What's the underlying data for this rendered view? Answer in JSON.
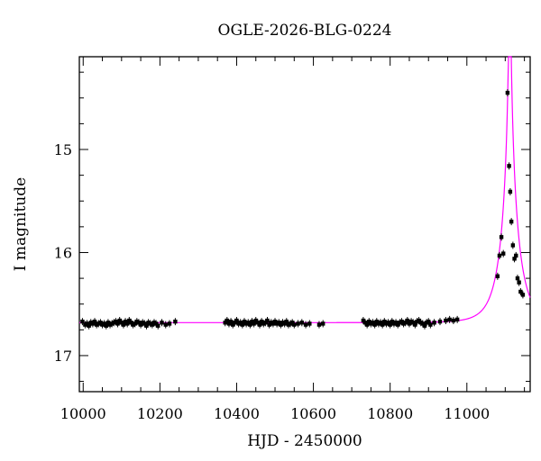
{
  "chart_data": {
    "type": "scatter",
    "title": "OGLE-2026-BLG-0224",
    "xlabel": "HJD - 2450000",
    "ylabel": "I magnitude",
    "xlim": [
      9990,
      11165
    ],
    "ylim": [
      17.35,
      14.1
    ],
    "y_inverted": true,
    "grid": false,
    "xticks": [
      10000,
      10200,
      10400,
      10600,
      10800,
      11000
    ],
    "yticks": [
      15,
      16,
      17
    ],
    "colors": {
      "points": "#000000",
      "model": "#ff00ff"
    },
    "model": {
      "description_hidden": true,
      "t0": 11112,
      "u0": 0.048,
      "tE": 46,
      "baseline_mag": 16.68,
      "blend_fraction": 1.0
    },
    "series": [
      {
        "values": [
          [
            9998,
            16.67
          ],
          [
            10005,
            16.7
          ],
          [
            10010,
            16.69
          ],
          [
            10015,
            16.71
          ],
          [
            10020,
            16.68
          ],
          [
            10025,
            16.69
          ],
          [
            10030,
            16.67
          ],
          [
            10035,
            16.7
          ],
          [
            10040,
            16.69
          ],
          [
            10045,
            16.68
          ],
          [
            10050,
            16.7
          ],
          [
            10055,
            16.69
          ],
          [
            10060,
            16.71
          ],
          [
            10065,
            16.68
          ],
          [
            10070,
            16.7
          ],
          [
            10075,
            16.69
          ],
          [
            10080,
            16.68
          ],
          [
            10085,
            16.67
          ],
          [
            10090,
            16.69
          ],
          [
            10095,
            16.66
          ],
          [
            10100,
            16.68
          ],
          [
            10105,
            16.7
          ],
          [
            10110,
            16.67
          ],
          [
            10115,
            16.69
          ],
          [
            10120,
            16.66
          ],
          [
            10125,
            16.68
          ],
          [
            10130,
            16.7
          ],
          [
            10135,
            16.69
          ],
          [
            10140,
            16.67
          ],
          [
            10145,
            16.68
          ],
          [
            10150,
            16.7
          ],
          [
            10155,
            16.68
          ],
          [
            10160,
            16.69
          ],
          [
            10165,
            16.71
          ],
          [
            10170,
            16.68
          ],
          [
            10175,
            16.69
          ],
          [
            10180,
            16.7
          ],
          [
            10185,
            16.68
          ],
          [
            10190,
            16.69
          ],
          [
            10195,
            16.71
          ],
          [
            10205,
            16.68
          ],
          [
            10215,
            16.7
          ],
          [
            10225,
            16.69
          ],
          [
            10240,
            16.67
          ],
          [
            10370,
            16.68
          ],
          [
            10375,
            16.66
          ],
          [
            10380,
            16.69
          ],
          [
            10385,
            16.67
          ],
          [
            10390,
            16.7
          ],
          [
            10395,
            16.68
          ],
          [
            10400,
            16.66
          ],
          [
            10405,
            16.69
          ],
          [
            10410,
            16.68
          ],
          [
            10415,
            16.7
          ],
          [
            10420,
            16.67
          ],
          [
            10425,
            16.69
          ],
          [
            10430,
            16.68
          ],
          [
            10435,
            16.7
          ],
          [
            10440,
            16.67
          ],
          [
            10445,
            16.69
          ],
          [
            10450,
            16.66
          ],
          [
            10455,
            16.68
          ],
          [
            10460,
            16.7
          ],
          [
            10465,
            16.67
          ],
          [
            10470,
            16.69
          ],
          [
            10475,
            16.68
          ],
          [
            10480,
            16.66
          ],
          [
            10485,
            16.7
          ],
          [
            10490,
            16.68
          ],
          [
            10495,
            16.69
          ],
          [
            10500,
            16.67
          ],
          [
            10505,
            16.69
          ],
          [
            10510,
            16.68
          ],
          [
            10515,
            16.7
          ],
          [
            10520,
            16.68
          ],
          [
            10525,
            16.69
          ],
          [
            10530,
            16.67
          ],
          [
            10535,
            16.7
          ],
          [
            10540,
            16.69
          ],
          [
            10545,
            16.68
          ],
          [
            10550,
            16.7
          ],
          [
            10560,
            16.69
          ],
          [
            10570,
            16.68
          ],
          [
            10580,
            16.7
          ],
          [
            10590,
            16.69
          ],
          [
            10615,
            16.7
          ],
          [
            10625,
            16.69
          ],
          [
            10730,
            16.66
          ],
          [
            10735,
            16.68
          ],
          [
            10740,
            16.7
          ],
          [
            10745,
            16.67
          ],
          [
            10750,
            16.69
          ],
          [
            10755,
            16.68
          ],
          [
            10760,
            16.7
          ],
          [
            10765,
            16.67
          ],
          [
            10770,
            16.69
          ],
          [
            10775,
            16.68
          ],
          [
            10780,
            16.7
          ],
          [
            10785,
            16.67
          ],
          [
            10790,
            16.69
          ],
          [
            10795,
            16.68
          ],
          [
            10800,
            16.7
          ],
          [
            10805,
            16.67
          ],
          [
            10810,
            16.69
          ],
          [
            10815,
            16.68
          ],
          [
            10820,
            16.7
          ],
          [
            10825,
            16.68
          ],
          [
            10830,
            16.67
          ],
          [
            10835,
            16.69
          ],
          [
            10840,
            16.68
          ],
          [
            10845,
            16.66
          ],
          [
            10850,
            16.69
          ],
          [
            10855,
            16.67
          ],
          [
            10860,
            16.68
          ],
          [
            10865,
            16.7
          ],
          [
            10870,
            16.67
          ],
          [
            10875,
            16.66
          ],
          [
            10880,
            16.68
          ],
          [
            10885,
            16.69
          ],
          [
            10890,
            16.71
          ],
          [
            10895,
            16.68
          ],
          [
            10900,
            16.67
          ],
          [
            10905,
            16.7
          ],
          [
            10915,
            16.68
          ],
          [
            10930,
            16.67
          ],
          [
            10945,
            16.66
          ],
          [
            10955,
            16.65
          ],
          [
            10965,
            16.66
          ],
          [
            10975,
            16.65
          ],
          [
            11080,
            16.23
          ],
          [
            11085,
            16.03
          ],
          [
            11090,
            15.85
          ],
          [
            11095,
            16.01
          ],
          [
            11106,
            14.45
          ],
          [
            11110,
            15.16
          ],
          [
            11113,
            15.41
          ],
          [
            11116,
            15.7
          ],
          [
            11120,
            15.93
          ],
          [
            11124,
            16.06
          ],
          [
            11128,
            16.03
          ],
          [
            11132,
            16.25
          ],
          [
            11136,
            16.29
          ],
          [
            11140,
            16.38
          ],
          [
            11146,
            16.41
          ]
        ]
      }
    ]
  }
}
